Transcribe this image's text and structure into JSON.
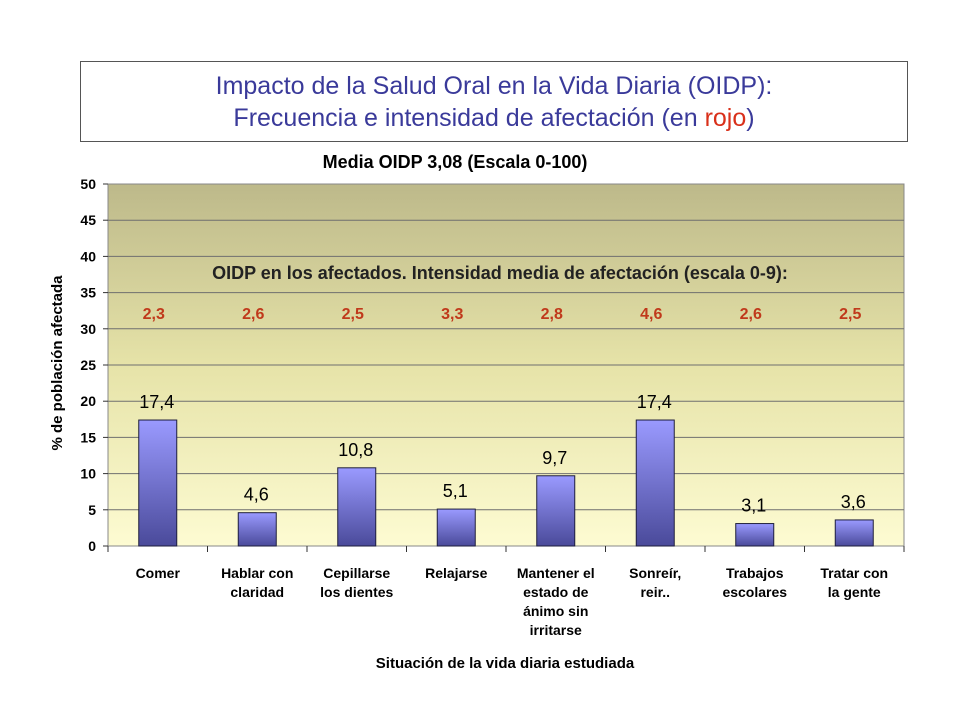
{
  "header": {
    "title_line1": "Impacto de la Salud Oral en la Vida Diaria (OIDP):",
    "title_line2_prefix": "Frecuencia e intensidad de afectación (en ",
    "title_line2_red": "rojo",
    "title_line2_suffix": ")"
  },
  "chart_data": {
    "type": "bar",
    "title": "Media OIDP 3,08 (Escala 0-100)",
    "xlabel": "Situación de la vida diaria estudiada",
    "ylabel": "% de población afectada",
    "ylim": [
      0,
      50
    ],
    "yticks": [
      "0",
      "5",
      "10",
      "15",
      "20",
      "25",
      "30",
      "35",
      "40",
      "45",
      "50"
    ],
    "grid": true,
    "categories": [
      [
        "Comer"
      ],
      [
        "Hablar con",
        "claridad"
      ],
      [
        "Cepillarse",
        "los dientes"
      ],
      [
        "Relajarse"
      ],
      [
        "Mantener el",
        "estado de",
        "ánimo sin",
        "irritarse"
      ],
      [
        "Sonreír,",
        "reir.."
      ],
      [
        "Trabajos",
        "escolares"
      ],
      [
        "Tratar con",
        "la gente"
      ]
    ],
    "values": [
      17.4,
      4.6,
      10.8,
      5.1,
      9.7,
      17.4,
      3.1,
      3.6
    ],
    "value_labels": [
      "17,4",
      "4,6",
      "10,8",
      "5,1",
      "9,7",
      "17,4",
      "3,1",
      "3,6"
    ],
    "intensity_title": "OIDP en los afectados. Intensidad media de afectación (escala 0-9):",
    "intensity_labels": [
      "2,3",
      "2,6",
      "2,5",
      "3,3",
      "2,8",
      "4,6",
      "2,6",
      "2,5"
    ],
    "colors": {
      "bar_top": "#9a9aff",
      "bar_bottom": "#4a4a9a",
      "intensity": "#c0391b"
    }
  }
}
